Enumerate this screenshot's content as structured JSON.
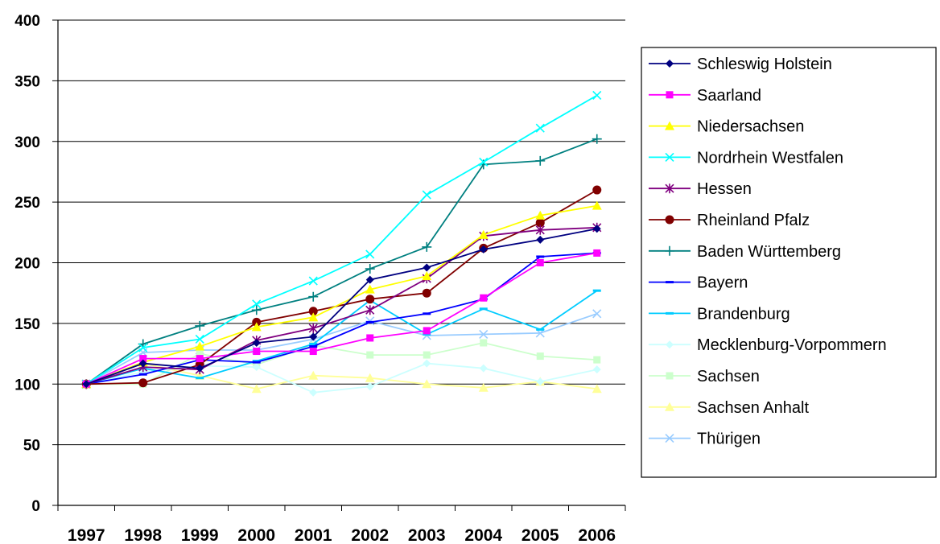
{
  "chart_data": {
    "type": "line",
    "title": "",
    "xlabel": "",
    "ylabel": "",
    "ylim": [
      0,
      400
    ],
    "yticks": [
      "0",
      "50",
      "100",
      "150",
      "200",
      "250",
      "300",
      "350",
      "400"
    ],
    "categories": [
      "1997",
      "1998",
      "1999",
      "2000",
      "2001",
      "2002",
      "2003",
      "2004",
      "2005",
      "2006"
    ],
    "grid": "horizontal",
    "legend_position": "right",
    "series": [
      {
        "name": "Schleswig Holstein",
        "color": "#000080",
        "marker": "diamond",
        "values": [
          100,
          117,
          113,
          134,
          139,
          186,
          196,
          211,
          219,
          228
        ]
      },
      {
        "name": "Saarland",
        "color": "#ff00ff",
        "marker": "square",
        "values": [
          100,
          121,
          121,
          127,
          127,
          138,
          144,
          171,
          200,
          208
        ]
      },
      {
        "name": "Niedersachsen",
        "color": "#ffff00",
        "marker": "triangle",
        "values": [
          100,
          118,
          131,
          147,
          155,
          178,
          189,
          223,
          239,
          247
        ]
      },
      {
        "name": "Nordrhein Westfalen",
        "color": "#00ffff",
        "marker": "x",
        "values": [
          100,
          130,
          137,
          166,
          185,
          207,
          256,
          283,
          311,
          338
        ]
      },
      {
        "name": "Hessen",
        "color": "#800080",
        "marker": "asterisk",
        "values": [
          100,
          114,
          112,
          136,
          146,
          161,
          187,
          222,
          227,
          229
        ]
      },
      {
        "name": "Rheinland Pfalz",
        "color": "#800000",
        "marker": "circle",
        "values": [
          100,
          101,
          116,
          151,
          160,
          170,
          175,
          212,
          233,
          260
        ]
      },
      {
        "name": "Baden Württemberg",
        "color": "#008080",
        "marker": "plus",
        "values": [
          100,
          133,
          148,
          161,
          172,
          195,
          213,
          281,
          284,
          302
        ]
      },
      {
        "name": "Bayern",
        "color": "#0000ff",
        "marker": "dash",
        "values": [
          100,
          108,
          120,
          118,
          131,
          151,
          158,
          170,
          205,
          208
        ]
      },
      {
        "name": "Brandenburg",
        "color": "#00ccff",
        "marker": "dash",
        "values": [
          100,
          113,
          105,
          119,
          133,
          169,
          141,
          162,
          145,
          177
        ]
      },
      {
        "name": "Mecklenburg-Vorpommern",
        "color": "#ccffff",
        "marker": "diamond",
        "values": [
          100,
          110,
          115,
          114,
          93,
          98,
          117,
          113,
          102,
          112
        ]
      },
      {
        "name": "Sachsen",
        "color": "#ccffcc",
        "marker": "square",
        "values": [
          100,
          100,
          125,
          116,
          132,
          124,
          124,
          134,
          123,
          120
        ]
      },
      {
        "name": "Sachsen Anhalt",
        "color": "#ffff99",
        "marker": "triangle",
        "values": [
          100,
          117,
          107,
          96,
          107,
          105,
          100,
          97,
          102,
          96
        ]
      },
      {
        "name": "Thürigen",
        "color": "#99ccff",
        "marker": "x",
        "values": [
          100,
          126,
          128,
          128,
          137,
          152,
          140,
          141,
          142,
          158
        ]
      }
    ]
  }
}
